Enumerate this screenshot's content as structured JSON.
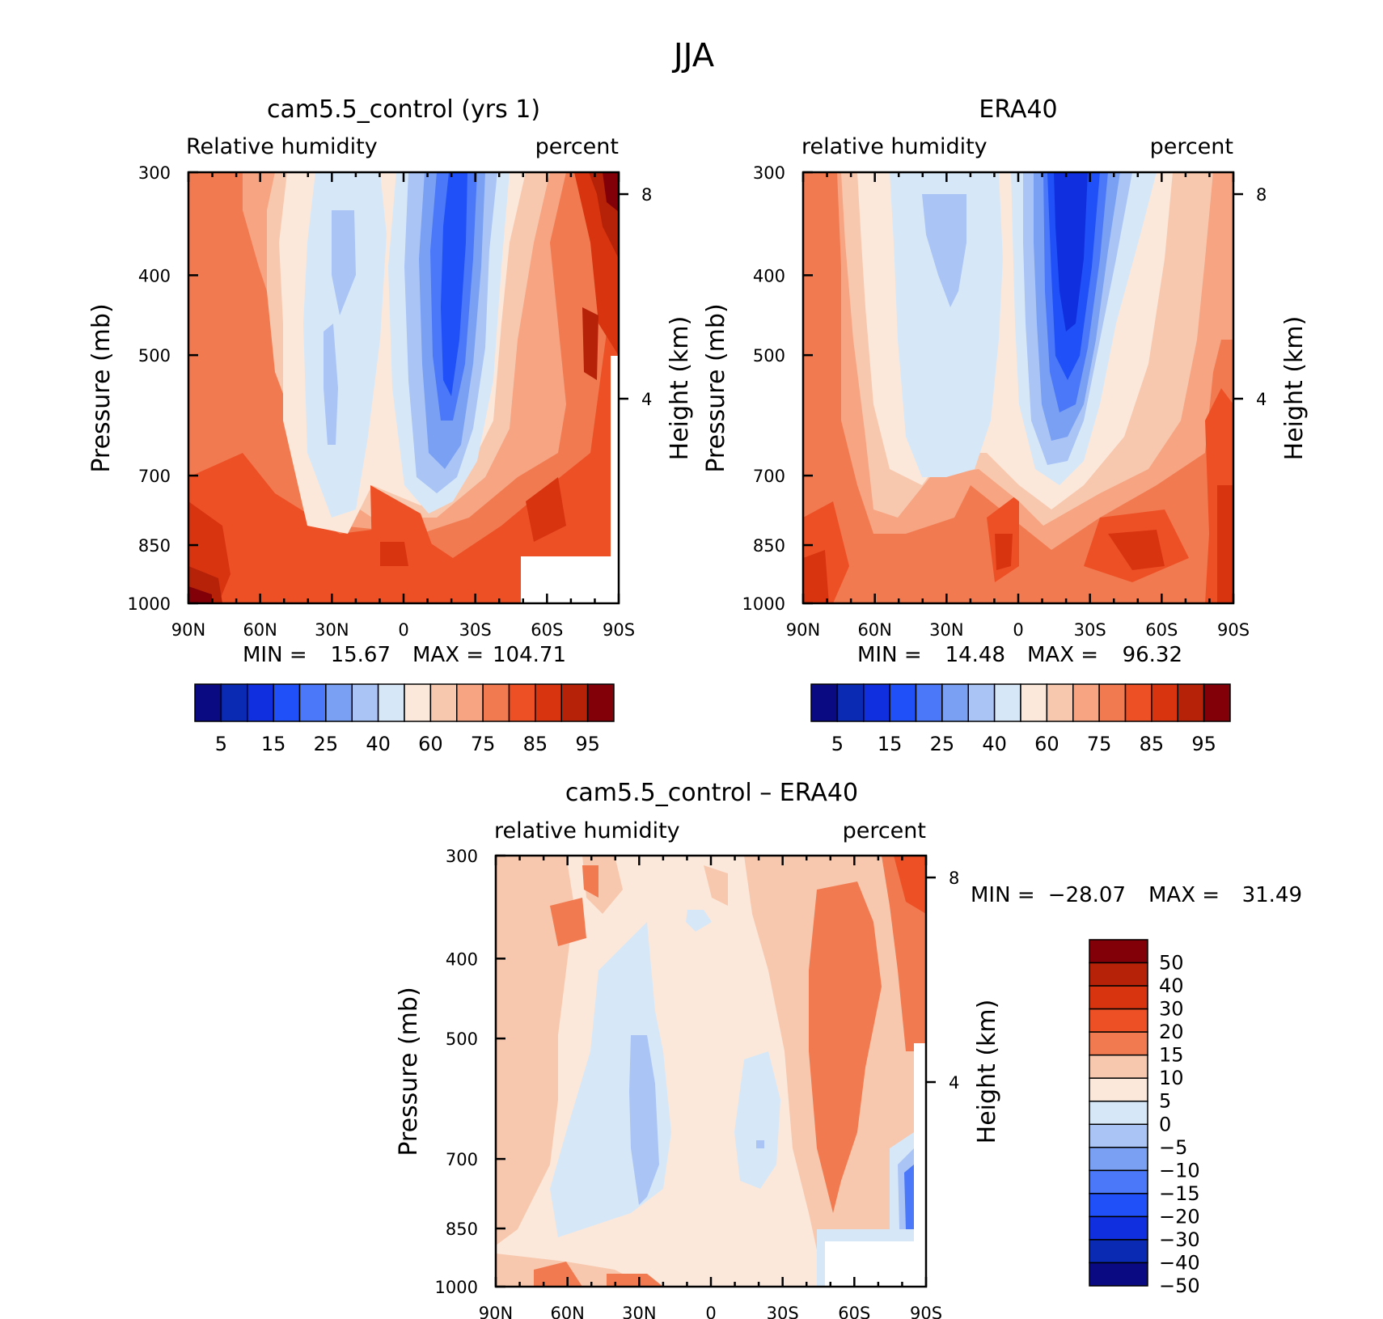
{
  "figure": {
    "title": "JJA"
  },
  "colors": {
    "abs_scale": [
      "#0a0a82",
      "#0a2ab4",
      "#1030e0",
      "#2050f8",
      "#4a78f8",
      "#7aa0f4",
      "#aac4f6",
      "#d6e8f8",
      "#fbe8da",
      "#f8c8ae",
      "#f6a482",
      "#f27a50",
      "#ee5026",
      "#d83410",
      "#b52208",
      "#820008"
    ],
    "diff_scale": [
      "#820008",
      "#b52208",
      "#d83410",
      "#ee5026",
      "#f27a50",
      "#f8c8ae",
      "#fbe8da",
      "#d6e8f8",
      "#aac4f6",
      "#7aa0f4",
      "#4a78f8",
      "#2050f8",
      "#1030e0",
      "#0a2ab4",
      "#0a0a82"
    ]
  },
  "chart_data": [
    {
      "id": "model",
      "type": "heatmap",
      "title": "cam5.5_control (yrs 1)",
      "left_label": "Relative humidity",
      "right_label": "percent",
      "ylabel": "Pressure (mb)",
      "ylabel_right": "Height (km)",
      "x_ticks": [
        "90N",
        "60N",
        "30N",
        "0",
        "30S",
        "60S",
        "90S"
      ],
      "y_ticks": [
        "300",
        "400",
        "500",
        "700",
        "850",
        "1000"
      ],
      "y_right_ticks": [
        "8",
        "4"
      ],
      "stats": {
        "min_label": "MIN =",
        "min": "15.67",
        "max_label": "MAX =",
        "max": "104.71"
      },
      "colorbar_labels": [
        "5",
        "15",
        "25",
        "40",
        "60",
        "75",
        "85",
        "95"
      ]
    },
    {
      "id": "obs",
      "type": "heatmap",
      "title": "ERA40",
      "left_label": "relative humidity",
      "right_label": "percent",
      "ylabel": "Pressure (mb)",
      "ylabel_right": "Height (km)",
      "x_ticks": [
        "90N",
        "60N",
        "30N",
        "0",
        "30S",
        "60S",
        "90S"
      ],
      "y_ticks": [
        "300",
        "400",
        "500",
        "700",
        "850",
        "1000"
      ],
      "y_right_ticks": [
        "8",
        "4"
      ],
      "stats": {
        "min_label": "MIN =",
        "min": "14.48",
        "max_label": "MAX =",
        "max": "96.32"
      },
      "colorbar_labels": [
        "5",
        "15",
        "25",
        "40",
        "60",
        "75",
        "85",
        "95"
      ]
    },
    {
      "id": "diff",
      "type": "heatmap",
      "title": "cam5.5_control – ERA40",
      "left_label": "relative humidity",
      "right_label": "percent",
      "ylabel": "Pressure (mb)",
      "ylabel_right": "Height (km)",
      "x_ticks": [
        "90N",
        "60N",
        "30N",
        "0",
        "30S",
        "60S",
        "90S"
      ],
      "y_ticks": [
        "300",
        "400",
        "500",
        "700",
        "850",
        "1000"
      ],
      "y_right_ticks": [
        "8",
        "4"
      ],
      "stats": {
        "min_label": "MIN =",
        "min": "−28.07",
        "max_label": "MAX =",
        "max": "31.49"
      },
      "colorbar_labels": [
        "50",
        "40",
        "30",
        "20",
        "15",
        "10",
        "5",
        "0",
        "−5",
        "−10",
        "−15",
        "−20",
        "−30",
        "−40",
        "−50"
      ]
    }
  ]
}
